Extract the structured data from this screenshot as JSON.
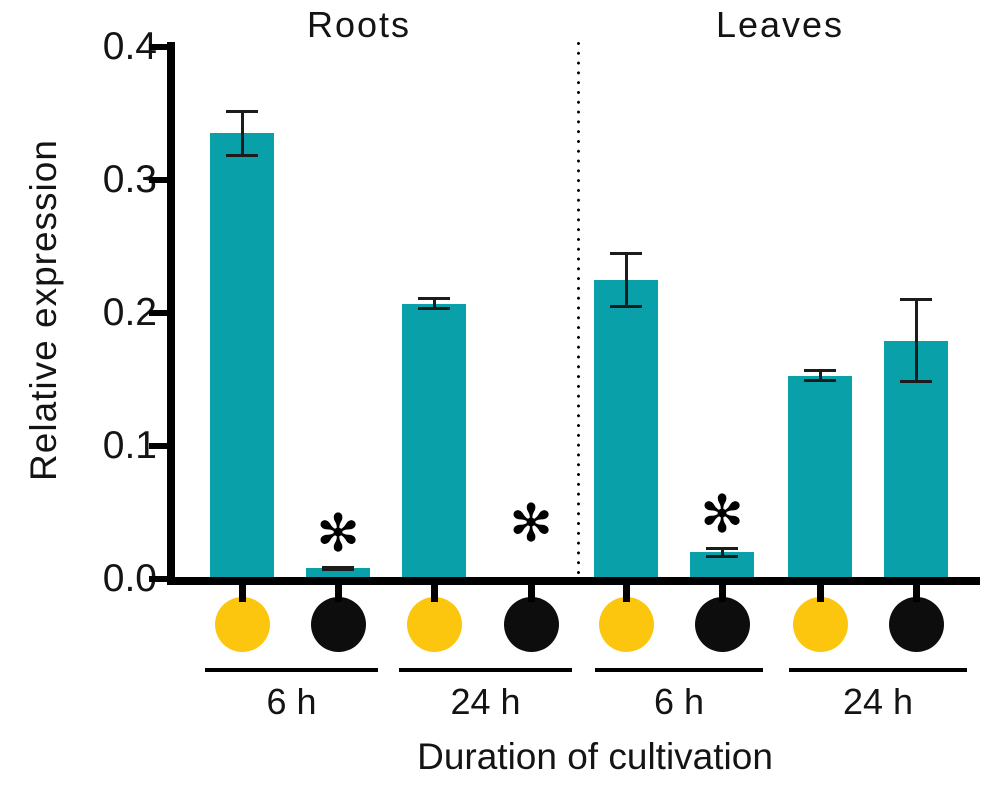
{
  "figure": {
    "y_tick_labels": [
      "0.0",
      "0.1",
      "0.2",
      "0.3",
      "0.4"
    ],
    "significance_symbol": "✻",
    "marker_legend": [
      "yellow-circle",
      "black-circle"
    ]
  },
  "colors": {
    "bar_teal": "#0aa0aa",
    "marker_yellow": "#fcc60f",
    "marker_black": "#0d0d0d",
    "axis_black": "#000000"
  },
  "chart_data": {
    "type": "bar",
    "title": "",
    "ylabel": "Relative expression",
    "xlabel": "Duration of cultivation",
    "ylim": [
      0,
      0.4
    ],
    "yticks": [
      0.0,
      0.1,
      0.2,
      0.3,
      0.4
    ],
    "grid": false,
    "legend_position": "none",
    "panels": [
      {
        "name": "Roots",
        "groups": [
          {
            "time": "6 h",
            "bars": [
              {
                "marker": "yellow-circle",
                "value": 0.335,
                "error": 0.018,
                "significant": false
              },
              {
                "marker": "black-circle",
                "value": 0.008,
                "error": 0.002,
                "significant": true
              }
            ]
          },
          {
            "time": "24 h",
            "bars": [
              {
                "marker": "yellow-circle",
                "value": 0.207,
                "error": 0.005,
                "significant": false
              },
              {
                "marker": "black-circle",
                "value": 0.0,
                "error": 0.0,
                "significant": true
              }
            ]
          }
        ]
      },
      {
        "name": "Leaves",
        "groups": [
          {
            "time": "6 h",
            "bars": [
              {
                "marker": "yellow-circle",
                "value": 0.225,
                "error": 0.021,
                "significant": false
              },
              {
                "marker": "black-circle",
                "value": 0.02,
                "error": 0.004,
                "significant": true
              }
            ]
          },
          {
            "time": "24 h",
            "bars": [
              {
                "marker": "yellow-circle",
                "value": 0.153,
                "error": 0.005,
                "significant": false
              },
              {
                "marker": "black-circle",
                "value": 0.179,
                "error": 0.032,
                "significant": false
              }
            ]
          }
        ]
      }
    ]
  }
}
